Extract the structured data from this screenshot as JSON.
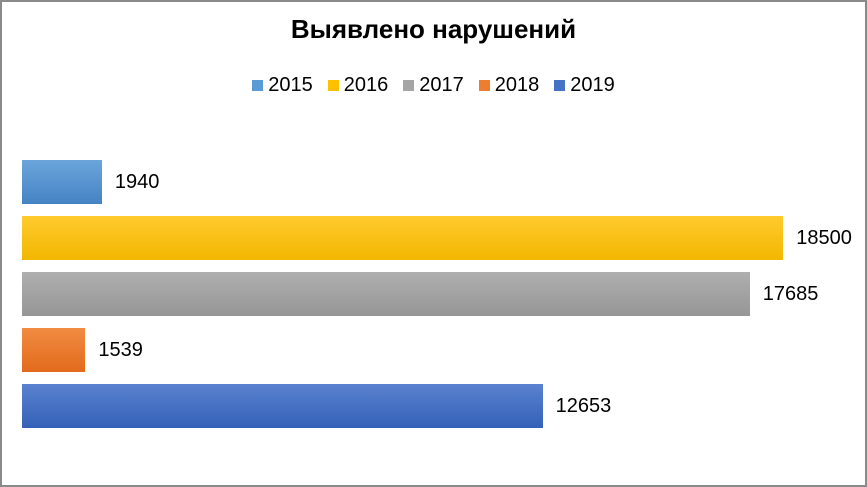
{
  "chart": {
    "title": "Выявлено нарушений",
    "axis_max": 20000,
    "series": [
      {
        "label": "2015",
        "value": 1940,
        "color": {
          "base": "#5B9BD5",
          "top": "#6BA5DB",
          "bottom": "#4583C4"
        }
      },
      {
        "label": "2016",
        "value": 18500,
        "color": {
          "base": "#FFC000",
          "top": "#FFCA2E",
          "bottom": "#F2B700"
        }
      },
      {
        "label": "2017",
        "value": 17685,
        "color": {
          "base": "#A5A5A5",
          "top": "#AFAFAF",
          "bottom": "#969696"
        }
      },
      {
        "label": "2018",
        "value": 1539,
        "color": {
          "base": "#ED7D31",
          "top": "#F18C42",
          "bottom": "#E26A1C"
        }
      },
      {
        "label": "2019",
        "value": 12653,
        "color": {
          "base": "#4472C4",
          "top": "#5A82CF",
          "bottom": "#3461B8"
        }
      }
    ]
  },
  "chart_data": {
    "type": "bar",
    "orientation": "horizontal",
    "title": "Выявлено нарушений",
    "categories": [
      "2015",
      "2016",
      "2017",
      "2018",
      "2019"
    ],
    "values": [
      1940,
      18500,
      17685,
      1539,
      12653
    ],
    "colors": [
      "#5B9BD5",
      "#FFC000",
      "#A5A5A5",
      "#ED7D31",
      "#4472C4"
    ],
    "xlim": [
      0,
      20000
    ],
    "legend": [
      "2015",
      "2016",
      "2017",
      "2018",
      "2019"
    ],
    "legend_position": "top",
    "grid": false,
    "data_labels": true,
    "axis_labels_visible": false
  },
  "frame": {
    "border_color": "#8A8A8A",
    "background": "#FFFFFF"
  }
}
